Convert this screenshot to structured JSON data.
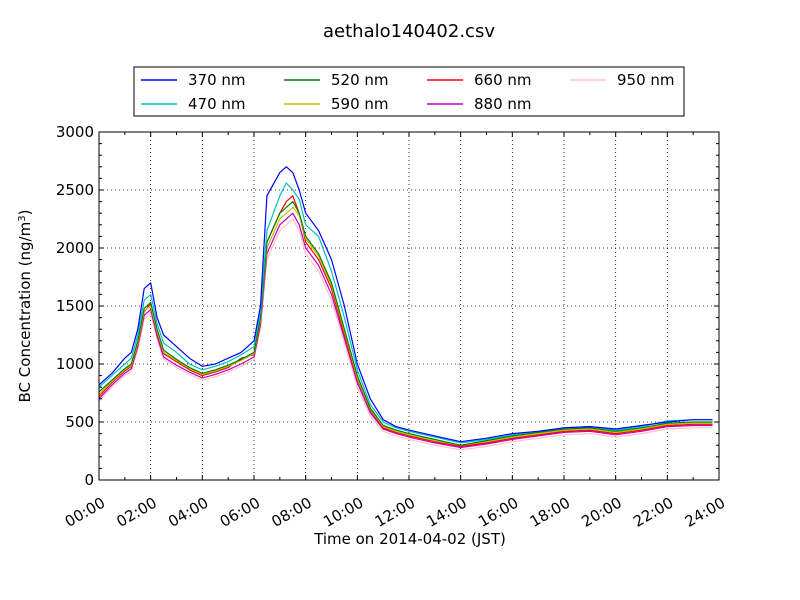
{
  "chart_data": {
    "type": "line",
    "title": "aethalo140402.csv",
    "xlabel": "Time on 2014-04-02 (JST)",
    "ylabel_main": "BC Concentration (ng/m",
    "ylabel_sup": "3",
    "ylabel_close": ")",
    "xlim": [
      "00:00",
      "24:00"
    ],
    "ylim": [
      0,
      3000
    ],
    "x_ticks": [
      "00:00",
      "02:00",
      "04:00",
      "06:00",
      "08:00",
      "10:00",
      "12:00",
      "14:00",
      "16:00",
      "18:00",
      "20:00",
      "22:00",
      "24:00"
    ],
    "y_ticks": [
      "0",
      "500",
      "1000",
      "1500",
      "2000",
      "2500",
      "3000"
    ],
    "grid": true,
    "legend_placement": "top, above plot",
    "x_hours": [
      0,
      0.5,
      1,
      1.25,
      1.5,
      1.75,
      2,
      2.25,
      2.5,
      3,
      3.5,
      4,
      4.5,
      5,
      5.5,
      6,
      6.25,
      6.5,
      7,
      7.25,
      7.5,
      7.75,
      8,
      8.5,
      9,
      9.5,
      10,
      10.5,
      11,
      11.5,
      12,
      13,
      14,
      15,
      16,
      17,
      18,
      19,
      20,
      21,
      22,
      23,
      23.75
    ],
    "series": [
      {
        "name": "370 nm",
        "color": "#0000ff",
        "values": [
          820,
          920,
          1050,
          1100,
          1300,
          1650,
          1700,
          1400,
          1250,
          1150,
          1050,
          980,
          1000,
          1050,
          1100,
          1200,
          1500,
          2450,
          2650,
          2700,
          2650,
          2500,
          2300,
          2150,
          1900,
          1500,
          1000,
          700,
          520,
          460,
          430,
          380,
          330,
          360,
          400,
          420,
          450,
          460,
          440,
          470,
          500,
          520,
          520
        ]
      },
      {
        "name": "470 nm",
        "color": "#00bfbf",
        "values": [
          800,
          900,
          1000,
          1050,
          1250,
          1550,
          1600,
          1350,
          1180,
          1100,
          1000,
          950,
          980,
          1020,
          1080,
          1150,
          1450,
          2150,
          2450,
          2560,
          2500,
          2420,
          2200,
          2100,
          1800,
          1400,
          950,
          650,
          500,
          450,
          420,
          370,
          320,
          350,
          390,
          420,
          450,
          460,
          430,
          460,
          510,
          520,
          520
        ]
      },
      {
        "name": "520 nm",
        "color": "#008000",
        "values": [
          760,
          860,
          960,
          1000,
          1200,
          1480,
          1530,
          1300,
          1120,
          1040,
          970,
          920,
          950,
          990,
          1040,
          1100,
          1400,
          2050,
          2300,
          2350,
          2400,
          2300,
          2100,
          1950,
          1700,
          1300,
          900,
          620,
          470,
          430,
          400,
          350,
          300,
          340,
          380,
          410,
          440,
          450,
          420,
          450,
          490,
          500,
          500
        ]
      },
      {
        "name": "590 nm",
        "color": "#bfbf00",
        "values": [
          740,
          850,
          950,
          990,
          1180,
          1460,
          1500,
          1280,
          1100,
          1030,
          960,
          910,
          940,
          980,
          1030,
          1090,
          1380,
          2000,
          2250,
          2300,
          2350,
          2280,
          2080,
          1930,
          1680,
          1280,
          880,
          610,
          460,
          420,
          390,
          340,
          300,
          330,
          370,
          400,
          430,
          440,
          410,
          440,
          480,
          490,
          490
        ]
      },
      {
        "name": "660 nm",
        "color": "#ff0000",
        "values": [
          720,
          840,
          940,
          980,
          1170,
          1450,
          1520,
          1270,
          1090,
          1020,
          950,
          900,
          930,
          970,
          1050,
          1080,
          1370,
          2050,
          2300,
          2400,
          2450,
          2300,
          2050,
          1900,
          1650,
          1250,
          870,
          600,
          450,
          410,
          380,
          330,
          290,
          320,
          360,
          390,
          420,
          430,
          400,
          430,
          470,
          480,
          480
        ]
      },
      {
        "name": "880 nm",
        "color": "#bf00bf",
        "values": [
          700,
          820,
          920,
          960,
          1150,
          1420,
          1470,
          1240,
          1060,
          990,
          930,
          880,
          910,
          950,
          1000,
          1060,
          1340,
          1950,
          2200,
          2250,
          2300,
          2200,
          2000,
          1850,
          1600,
          1220,
          840,
          580,
          440,
          400,
          370,
          320,
          280,
          310,
          350,
          380,
          410,
          420,
          390,
          420,
          460,
          470,
          470
        ]
      },
      {
        "name": "950 nm",
        "color": "#ffc0cb",
        "values": [
          680,
          800,
          900,
          940,
          1120,
          1390,
          1440,
          1210,
          1040,
          970,
          910,
          860,
          890,
          930,
          980,
          1040,
          1310,
          1900,
          2150,
          2200,
          2250,
          2150,
          1950,
          1800,
          1550,
          1180,
          800,
          550,
          420,
          380,
          350,
          300,
          260,
          290,
          330,
          360,
          390,
          400,
          370,
          400,
          440,
          450,
          450
        ]
      }
    ]
  }
}
